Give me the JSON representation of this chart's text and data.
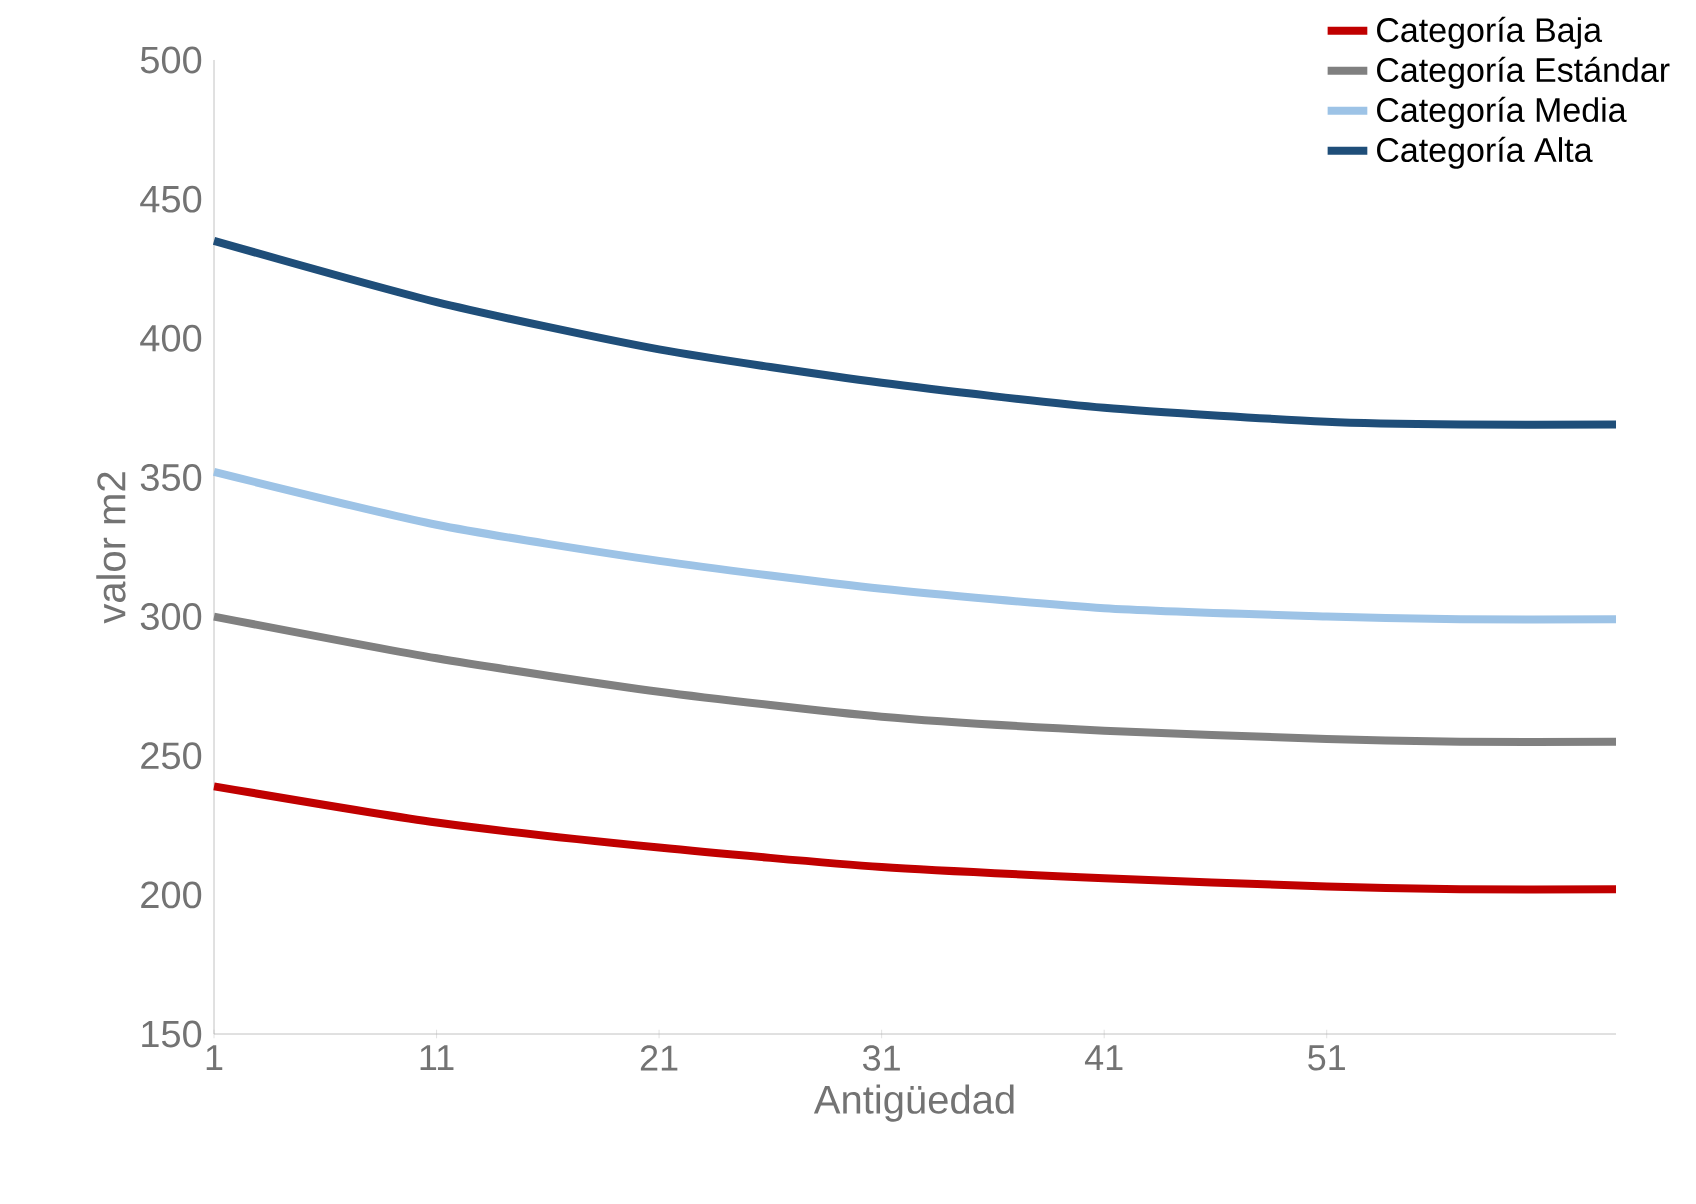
{
  "chart_data": {
    "type": "line",
    "xlabel": "Antigüedad",
    "ylabel": "valor m2",
    "x": [
      1,
      11,
      21,
      31,
      41,
      51,
      57,
      64
    ],
    "xlim": [
      1,
      64
    ],
    "xticks": [
      1,
      11,
      21,
      31,
      41,
      51
    ],
    "ylim": [
      150,
      500
    ],
    "yticks": [
      150,
      200,
      250,
      300,
      350,
      400,
      450,
      500
    ],
    "series": [
      {
        "name": "Categoría Baja",
        "color": "#c00000",
        "values": [
          239,
          226,
          217,
          210,
          206,
          203,
          202,
          202
        ]
      },
      {
        "name": "Categoría Estándar",
        "color": "#808080",
        "values": [
          300,
          285,
          273,
          264,
          259,
          256,
          255,
          255
        ]
      },
      {
        "name": "Categoría Media",
        "color": "#9dc3e6",
        "values": [
          352,
          333,
          320,
          310,
          303,
          300,
          299,
          299
        ]
      },
      {
        "name": "Categoría Alta",
        "color": "#1f4e79",
        "values": [
          435,
          413,
          396,
          384,
          375,
          370,
          369,
          369
        ]
      }
    ],
    "legend": "top right",
    "grid": false,
    "marker": "none",
    "line_style": "solid"
  }
}
